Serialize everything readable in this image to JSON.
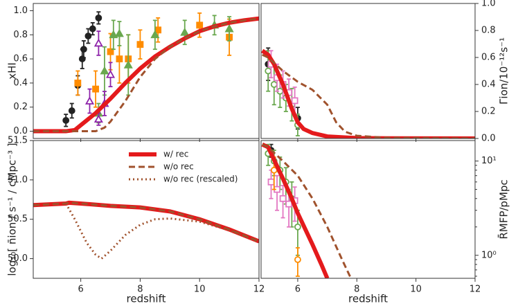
{
  "chart_data": [
    {
      "type": "line",
      "ylabel": "xHI",
      "yaxis": "left",
      "xlim": [
        4.4,
        12
      ],
      "ylim": [
        -0.06,
        1.06
      ],
      "xticks": [
        6,
        8,
        10,
        12
      ],
      "show_xtick_labels": false,
      "yticks": [
        {
          "value": 0,
          "label": "0.0"
        },
        {
          "value": 0.2,
          "label": "0.2"
        },
        {
          "value": 0.4,
          "label": "0.4"
        },
        {
          "value": 0.6,
          "label": "0.6"
        },
        {
          "value": 0.8,
          "label": "0.8"
        },
        {
          "value": 1,
          "label": "1.0"
        }
      ],
      "series": [
        {
          "color": "#e41a1c",
          "dash": "solid",
          "x": [
            4.4,
            5.5,
            5.8,
            6,
            6.5,
            7,
            7.5,
            8,
            8.5,
            9,
            9.5,
            10,
            10.5,
            11,
            11.5,
            12
          ],
          "values": [
            0,
            0,
            0.01,
            0.05,
            0.15,
            0.27,
            0.4,
            0.52,
            0.62,
            0.7,
            0.77,
            0.83,
            0.87,
            0.9,
            0.92,
            0.935
          ]
        },
        {
          "color": "#a0522d",
          "dash": "dashed",
          "x": [
            4.4,
            6.5,
            6.8,
            7,
            7.5,
            8,
            8.5,
            9,
            9.5,
            10,
            10.5,
            11,
            11.5,
            12
          ],
          "values": [
            0,
            0,
            0.03,
            0.08,
            0.25,
            0.45,
            0.6,
            0.7,
            0.77,
            0.83,
            0.87,
            0.9,
            0.92,
            0.935
          ]
        }
      ],
      "points": [
        {
          "color": "#222222",
          "marker": "circle",
          "filled": true,
          "x": [
            5.5,
            5.7,
            5.9,
            6.05,
            6.1,
            6.25,
            6.4,
            6.6
          ],
          "values": [
            0.09,
            0.17,
            0.38,
            0.6,
            0.68,
            0.79,
            0.85,
            0.94
          ],
          "errors": [
            0.05,
            0.06,
            0.08,
            0.08,
            0.07,
            0.06,
            0.05,
            0.05
          ]
        },
        {
          "color": "#ff8c00",
          "marker": "square",
          "filled": true,
          "x": [
            5.9,
            6.5,
            7.0,
            7.3,
            7.6,
            8.0,
            8.6,
            10.0,
            11.0
          ],
          "values": [
            0.4,
            0.35,
            0.66,
            0.6,
            0.6,
            0.72,
            0.84,
            0.88,
            0.78
          ],
          "errors": [
            0.1,
            0.15,
            0.15,
            0.2,
            0.2,
            0.12,
            0.1,
            0.1,
            0.15
          ]
        },
        {
          "color": "#6aa84f",
          "marker": "triangle",
          "filled": true,
          "x": [
            6.6,
            6.8,
            7.1,
            7.3,
            7.6,
            8.5,
            9.5,
            10.5,
            11.0
          ],
          "values": [
            0.15,
            0.5,
            0.8,
            0.81,
            0.55,
            0.8,
            0.82,
            0.88,
            0.85
          ],
          "errors": [
            0.08,
            0.2,
            0.12,
            0.1,
            0.25,
            0.12,
            0.1,
            0.08,
            0.1
          ]
        },
        {
          "color": "#8e24aa",
          "marker": "triangle",
          "filled": false,
          "x": [
            6.3,
            6.6,
            6.6,
            6.8,
            7.0
          ],
          "values": [
            0.25,
            0.1,
            0.73,
            0.23,
            0.47
          ],
          "errors": [
            0.1,
            0.05,
            0.1,
            0.1,
            0.1
          ]
        }
      ]
    },
    {
      "type": "line",
      "ylabel": "Γ̄ion/10⁻¹²s⁻¹",
      "yaxis": "right",
      "xlim": [
        4.76,
        12
      ],
      "ylim": [
        0,
        1
      ],
      "xticks": [
        6,
        8,
        10,
        12
      ],
      "show_xtick_labels": false,
      "yticks": [
        {
          "value": 0,
          "label": "0.0"
        },
        {
          "value": 0.2,
          "label": "0.2"
        },
        {
          "value": 0.4,
          "label": "0.4"
        },
        {
          "value": 0.6,
          "label": "0.6"
        },
        {
          "value": 0.8,
          "label": "0.8"
        },
        {
          "value": 1,
          "label": "1.0"
        }
      ],
      "series": [
        {
          "color": "#e41a1c",
          "dash": "solid",
          "x": [
            4.8,
            5.0,
            5.2,
            5.5,
            5.8,
            6.0,
            6.2,
            6.5,
            7,
            8,
            9,
            12
          ],
          "values": [
            0.65,
            0.62,
            0.55,
            0.4,
            0.22,
            0.12,
            0.07,
            0.04,
            0.015,
            0.003,
            0.001,
            0
          ]
        },
        {
          "color": "#a0522d",
          "dash": "dashed",
          "x": [
            4.8,
            5.0,
            5.5,
            6,
            6.5,
            7,
            7.3,
            7.6,
            8,
            9,
            12
          ],
          "values": [
            0.62,
            0.6,
            0.5,
            0.42,
            0.36,
            0.25,
            0.12,
            0.05,
            0.02,
            0.005,
            0
          ]
        }
      ],
      "points": [
        {
          "color": "#222222",
          "marker": "circle",
          "filled": true,
          "x": [
            5.0,
            6.0
          ],
          "values": [
            0.55,
            0.15
          ],
          "errors": [
            0.12,
            0.08
          ]
        },
        {
          "color": "#6aa84f",
          "marker": "circle",
          "filled": false,
          "x": [
            5.0,
            5.2,
            5.4,
            5.6,
            5.8,
            6.0
          ],
          "values": [
            0.5,
            0.4,
            0.35,
            0.3,
            0.25,
            0.1
          ],
          "errors": [
            0.15,
            0.15,
            0.12,
            0.1,
            0.12,
            0.08
          ]
        },
        {
          "color": "#e377c2",
          "marker": "square",
          "filled": false,
          "x": [
            5.1,
            5.3,
            5.5,
            5.7,
            5.9
          ],
          "values": [
            0.55,
            0.45,
            0.4,
            0.34,
            0.28
          ],
          "errors": [
            0.1,
            0.1,
            0.1,
            0.1,
            0.1
          ]
        }
      ]
    },
    {
      "type": "line",
      "ylabel": "log₁₀[ n̄ion / s⁻¹ / cMpc⁻³ ]",
      "xlabel": "redshift",
      "yaxis": "left",
      "xlim": [
        4.4,
        12
      ],
      "ylim": [
        49.75,
        51.5
      ],
      "xticks": [
        6,
        8,
        10,
        12
      ],
      "show_xtick_labels": true,
      "yticks": [
        {
          "value": 50,
          "label": "50.0"
        },
        50.5,
        {
          "value": 51,
          "label": "51.0"
        },
        51.5
      ],
      "legend": "upper center",
      "series": [
        {
          "name": "w/ rec",
          "color": "#e41a1c",
          "dash": "solid",
          "x": [
            4.4,
            5.5,
            5.6,
            6,
            7,
            8,
            9,
            10,
            11,
            12
          ],
          "values": [
            50.68,
            50.7,
            50.71,
            50.7,
            50.67,
            50.65,
            50.6,
            50.5,
            50.37,
            50.22
          ]
        },
        {
          "name": "w/o rec",
          "color": "#a0522d",
          "dash": "dashed",
          "x": [
            4.4,
            5.5,
            5.6,
            6,
            7,
            8,
            9,
            10,
            11,
            12
          ],
          "values": [
            50.68,
            50.7,
            50.71,
            50.7,
            50.67,
            50.65,
            50.6,
            50.5,
            50.37,
            50.22
          ]
        },
        {
          "name": "w/o rec (rescaled)",
          "color": "#a0522d",
          "dash": "dotted",
          "x": [
            5.5,
            5.8,
            6.2,
            6.5,
            6.7,
            7,
            7.5,
            8,
            8.5,
            9,
            10,
            11,
            12
          ],
          "values": [
            50.7,
            50.5,
            50.2,
            50.05,
            50.0,
            50.1,
            50.3,
            50.43,
            50.5,
            50.51,
            50.47,
            50.36,
            50.21
          ]
        }
      ]
    },
    {
      "type": "line",
      "ylabel": "R̄MFP/pMpc",
      "xlabel": "redshift",
      "yaxis": "right",
      "yscale": "log",
      "xlim": [
        4.76,
        12
      ],
      "ylim": [
        0.57,
        16.5
      ],
      "xticks": [
        6,
        8,
        10,
        12
      ],
      "show_xtick_labels": true,
      "yticks": [
        {
          "value": 1,
          "label": "10⁰"
        },
        {
          "value": 10,
          "label": "10¹"
        }
      ],
      "series": [
        {
          "color": "#e41a1c",
          "dash": "solid",
          "x": [
            4.8,
            5.0,
            5.5,
            5.8,
            6.0,
            6.5,
            6.8,
            7.0
          ],
          "values": [
            15,
            14,
            6.5,
            4,
            2.8,
            1.3,
            0.8,
            0.57
          ]
        },
        {
          "color": "#a0522d",
          "dash": "dashed",
          "x": [
            4.8,
            5.0,
            5.5,
            6.0,
            6.5,
            7.0,
            7.5,
            7.8
          ],
          "values": [
            15,
            14,
            10,
            7,
            4,
            2,
            0.9,
            0.57
          ]
        }
      ],
      "points": [
        {
          "color": "#222222",
          "marker": "circle",
          "filled": true,
          "x": [
            5.1
          ],
          "values": [
            13
          ],
          "errors": [
            2
          ]
        },
        {
          "color": "#6aa84f",
          "marker": "circle",
          "filled": false,
          "x": [
            5.0,
            5.2,
            5.4,
            5.6,
            5.8,
            6.0
          ],
          "values": [
            12,
            10,
            8,
            6,
            4,
            2
          ],
          "errors": [
            3,
            3,
            3,
            2.5,
            2,
            1
          ]
        },
        {
          "color": "#e377c2",
          "marker": "square",
          "filled": false,
          "x": [
            5.1,
            5.3,
            5.5,
            5.7,
            5.9
          ],
          "values": [
            6,
            5,
            4,
            3.5,
            3.8
          ],
          "errors": [
            2,
            2,
            1.5,
            1.5,
            1.5
          ]
        },
        {
          "color": "#ff8c00",
          "marker": "circle",
          "filled": false,
          "x": [
            5.2,
            6.0
          ],
          "values": [
            8,
            0.9
          ],
          "errors": [
            3,
            0.3
          ]
        }
      ]
    }
  ]
}
